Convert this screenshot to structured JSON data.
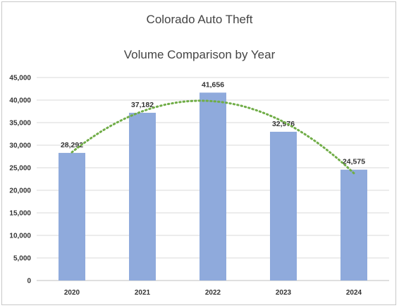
{
  "chart_data": {
    "type": "bar",
    "title": "Colorado Auto Theft",
    "subtitle": "Volume Comparison by Year",
    "categories": [
      "2020",
      "2021",
      "2022",
      "2023",
      "2024"
    ],
    "values": [
      28292,
      37182,
      41656,
      32976,
      24575
    ],
    "value_labels": [
      "28,292",
      "37,182",
      "41,656",
      "32,976",
      "24,575"
    ],
    "ylim": [
      0,
      45000
    ],
    "yticks": [
      0,
      5000,
      10000,
      15000,
      20000,
      25000,
      30000,
      35000,
      40000,
      45000
    ],
    "ytick_labels": [
      "0",
      "5,000",
      "10,000",
      "15,000",
      "20,000",
      "25,000",
      "30,000",
      "35,000",
      "40,000",
      "45,000"
    ],
    "grid": true,
    "legend": "none",
    "trendline": "polynomial",
    "colors": {
      "bar": "#8faadc",
      "trend": "#70ad47",
      "grid": "#d9d9d9"
    }
  }
}
